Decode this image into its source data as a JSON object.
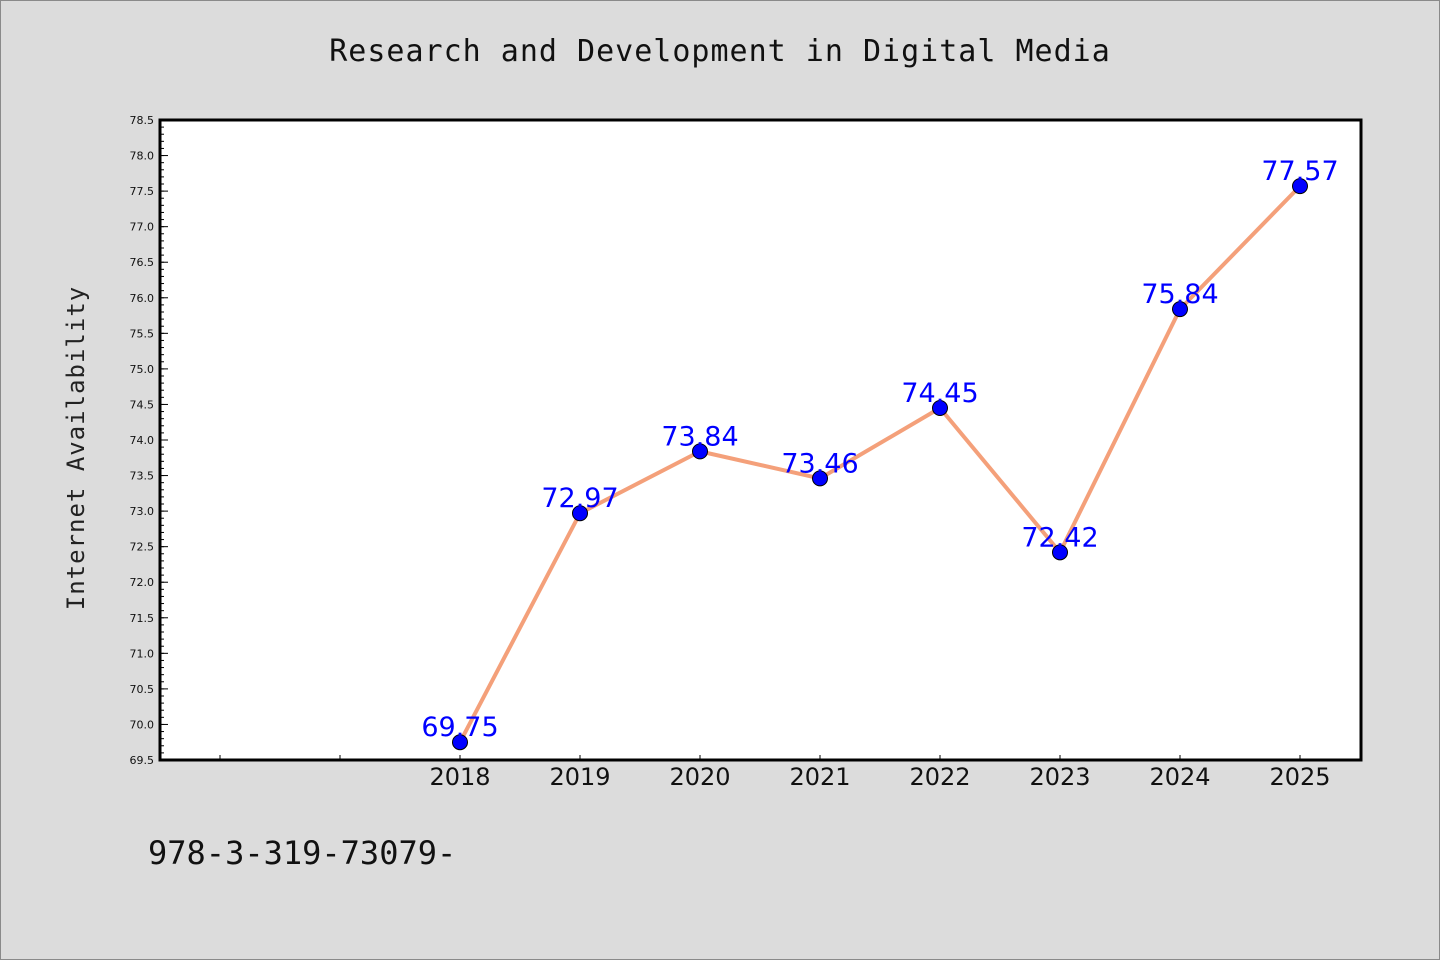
{
  "chart_data": {
    "type": "line",
    "title": "Research and Development in Digital Media",
    "xlabel": "",
    "ylabel": "Internet Availability",
    "categories": [
      "2018",
      "2019",
      "2020",
      "2021",
      "2022",
      "2023",
      "2024",
      "2025"
    ],
    "series": [
      {
        "values": [
          69.75,
          72.97,
          73.84,
          73.46,
          74.45,
          72.42,
          75.84,
          77.57
        ],
        "data_labels": [
          "69.75",
          "72.97",
          "73.84",
          "73.46",
          "74.45",
          "72.42",
          "75.84",
          "77.57"
        ],
        "line_color": "#f4a07a",
        "marker_color": "#0000ff"
      }
    ],
    "ylim": [
      69.5,
      78.5
    ],
    "yticks": [
      "69.5",
      "70.0",
      "70.5",
      "71.0",
      "71.5",
      "72.0",
      "72.5",
      "73.0",
      "73.5",
      "74.0",
      "74.5",
      "75.0",
      "75.5",
      "76.0",
      "76.5",
      "77.0",
      "77.5",
      "78.0",
      "78.5"
    ],
    "grid": false,
    "legend": "none"
  },
  "footer": {
    "text": "978-3-319-73079-"
  },
  "colors": {
    "background": "#dcdcdc",
    "plot_background": "#ffffff",
    "line": "#f4a07a",
    "marker": "#0000ff",
    "label": "#0000ff"
  }
}
